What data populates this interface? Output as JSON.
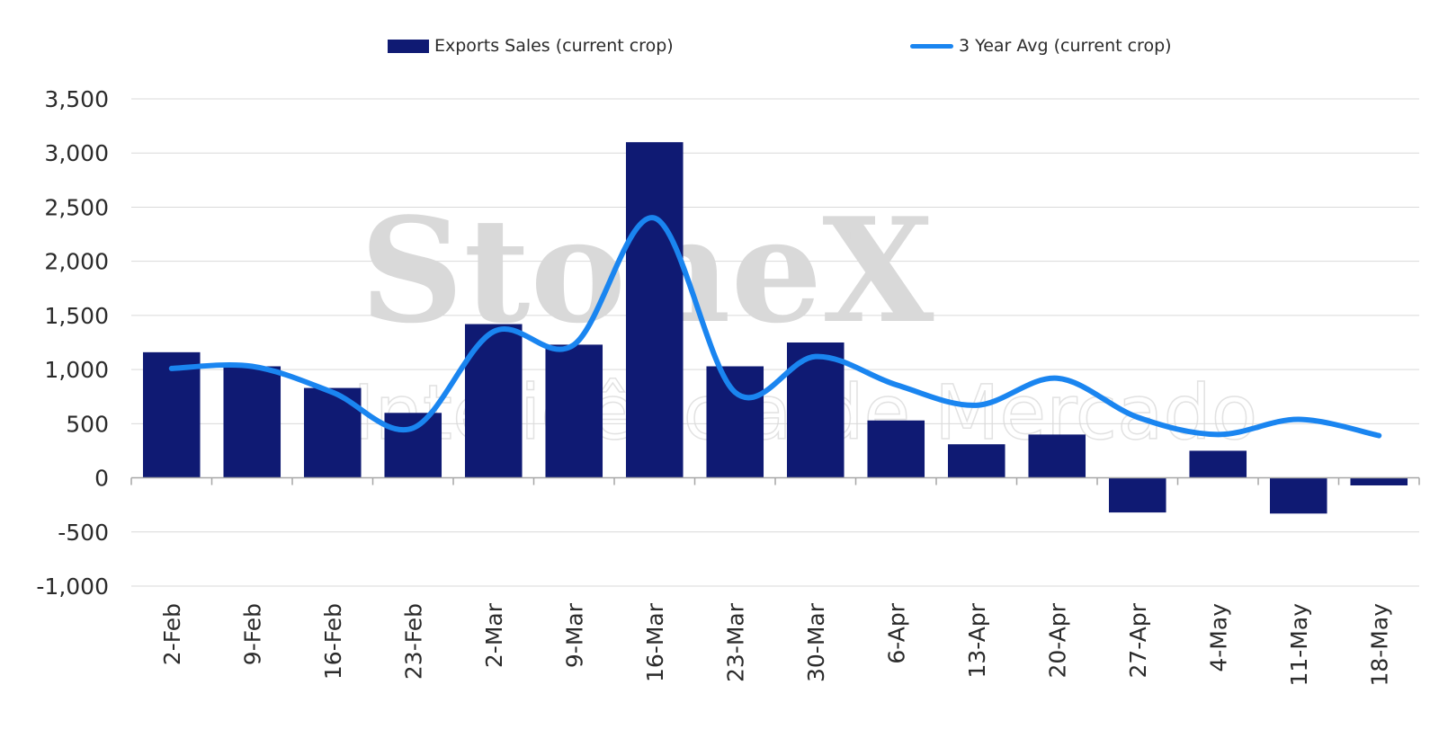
{
  "watermark": {
    "brand": "StoneX",
    "registered": "®",
    "tagline": "Inteligência de Mercado"
  },
  "colors": {
    "bars": "#0f1a73",
    "line": "#1a85f0",
    "grid": "#d9d9d9",
    "axis": "#a6a6a6",
    "text": "#2b2b2b"
  },
  "chart_data": {
    "type": "bar",
    "title": "",
    "xlabel": "",
    "ylabel": "",
    "ylim": [
      -1000,
      3500
    ],
    "yticks": [
      -1000,
      -500,
      0,
      500,
      1000,
      1500,
      2000,
      2500,
      3000,
      3500
    ],
    "ytick_labels": [
      "-1,000",
      "-500",
      "0",
      "500",
      "1,000",
      "1,500",
      "2,000",
      "2,500",
      "3,000",
      "3,500"
    ],
    "grid": true,
    "legend_position": "top",
    "categories": [
      "2-Feb",
      "9-Feb",
      "16-Feb",
      "23-Feb",
      "2-Mar",
      "9-Mar",
      "16-Mar",
      "23-Mar",
      "30-Mar",
      "6-Apr",
      "13-Apr",
      "20-Apr",
      "27-Apr",
      "4-May",
      "11-May",
      "18-May"
    ],
    "series": [
      {
        "name": "Exports Sales (current crop)",
        "type": "bar",
        "values": [
          1160,
          1030,
          830,
          600,
          1420,
          1230,
          3100,
          1030,
          1250,
          530,
          310,
          400,
          -320,
          250,
          -330,
          -70
        ]
      },
      {
        "name": "3 Year Avg (current crop)",
        "type": "line",
        "values": [
          1010,
          1030,
          790,
          460,
          1350,
          1230,
          2400,
          790,
          1120,
          860,
          670,
          920,
          560,
          400,
          540,
          390
        ]
      }
    ]
  }
}
